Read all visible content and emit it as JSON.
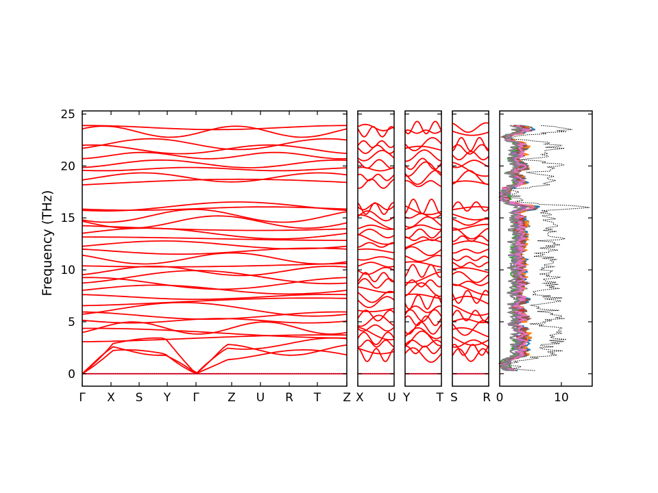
{
  "chart_data": {
    "type": "line",
    "ylabel": "Frequency (THz)",
    "ylim": [
      -1.2,
      25.3
    ],
    "yticks": [
      0,
      5,
      10,
      15,
      20,
      25
    ],
    "line_color": "#ff0000",
    "zero_line_color": "#0000aa",
    "band_panels": [
      {
        "name": "G-X-S-Y-G-Z-U-R-T-Z",
        "labels": [
          "Γ",
          "X",
          "S",
          "Y",
          "Γ",
          "Z",
          "U",
          "R",
          "T",
          "Z"
        ]
      },
      {
        "name": "X-U",
        "labels": [
          "X",
          "U"
        ]
      },
      {
        "name": "Y-T",
        "labels": [
          "Y",
          "T"
        ]
      },
      {
        "name": "S-R",
        "labels": [
          "S",
          "R"
        ]
      }
    ],
    "dos_panel": {
      "xlim": [
        0,
        15
      ],
      "xticks": [
        0,
        10
      ],
      "total_color": "#000000",
      "partial_colors": [
        "#1f77b4",
        "#ff7f0e",
        "#2ca02c",
        "#d62728",
        "#9467bd",
        "#8c564b",
        "#e377c2",
        "#7f7f7f"
      ]
    },
    "band_frequencies_approx": [
      0.0,
      1.8,
      2.3,
      2.9,
      3.4,
      3.9,
      4.4,
      5.1,
      5.6,
      6.2,
      6.9,
      7.4,
      8.1,
      8.7,
      9.3,
      9.9,
      10.5,
      11.1,
      11.8,
      12.4,
      13.0,
      13.5,
      14.1,
      14.6,
      15.2,
      15.9,
      16.1,
      18.3,
      18.9,
      19.7,
      20.2,
      21.0,
      21.6,
      22.1,
      23.3,
      23.7
    ]
  }
}
